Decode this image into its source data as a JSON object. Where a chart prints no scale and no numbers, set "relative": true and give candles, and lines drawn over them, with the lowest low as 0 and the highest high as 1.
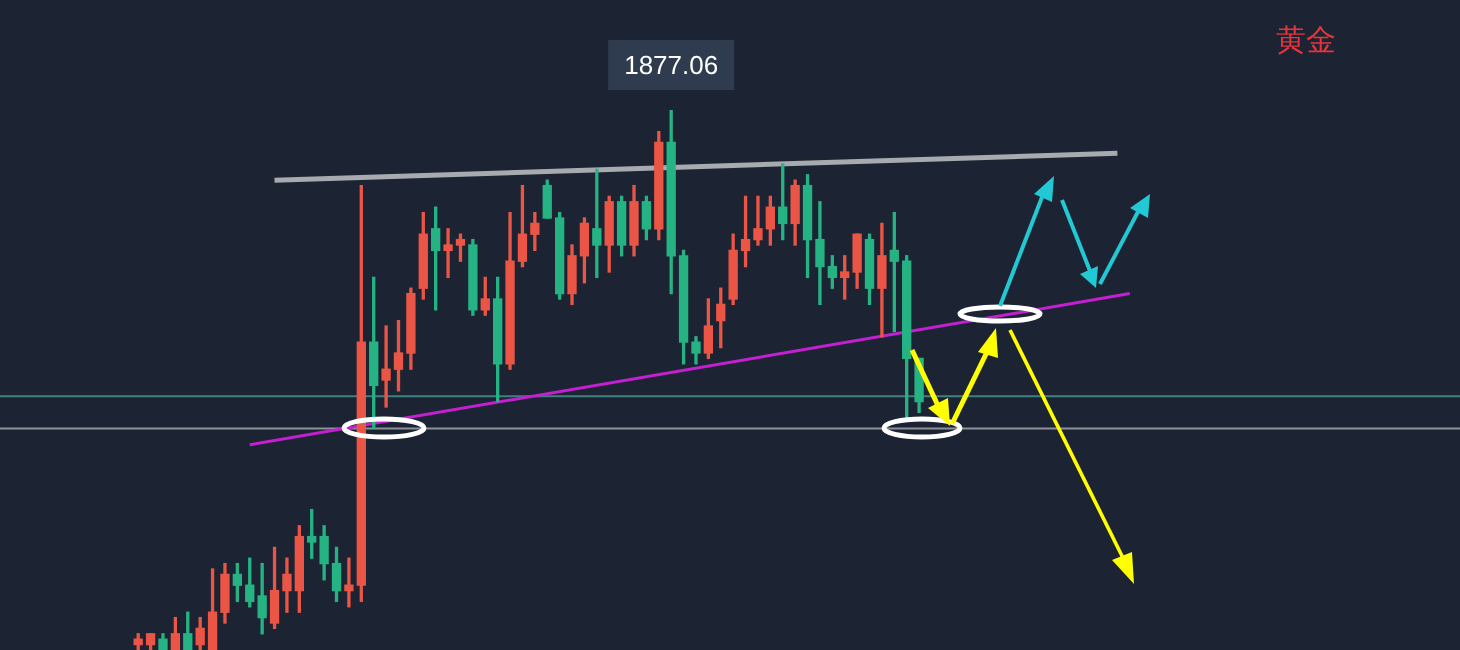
{
  "chart_data": {
    "type": "candlestick",
    "title": "黄金",
    "relative": true,
    "legend": false,
    "tick_labels": false,
    "categories": [
      null,
      null,
      null,
      null,
      null,
      null,
      null,
      null,
      null,
      null,
      null,
      null,
      null,
      null,
      null,
      null,
      null,
      null,
      null,
      null,
      null,
      null,
      null,
      null,
      null,
      null,
      null,
      null,
      null,
      null,
      null,
      null,
      null,
      null,
      null,
      null,
      null,
      null,
      null,
      null,
      null,
      null,
      null,
      null,
      null,
      null,
      null,
      null,
      null,
      null,
      null,
      null,
      null,
      null,
      null,
      null,
      null,
      null,
      null,
      null,
      null,
      null,
      null,
      null,
      null,
      null,
      null,
      null,
      null,
      null,
      null,
      null,
      null,
      null,
      null,
      null,
      null,
      null,
      null,
      null,
      null
    ],
    "series": [
      {
        "type": "line",
        "color": "#a7abb0",
        "values": [
          null,
          null,
          null,
          null,
          null,
          null,
          null,
          null,
          null,
          null,
          null,
          0.87,
          null,
          null,
          null,
          null,
          null,
          null,
          null,
          null,
          null,
          null,
          null,
          null,
          null,
          null,
          null,
          null,
          null,
          null,
          null,
          null,
          null,
          null,
          null,
          null,
          null,
          null,
          null,
          null,
          null,
          null,
          null,
          null,
          null,
          null,
          null,
          null,
          null,
          null,
          null,
          null,
          null,
          null,
          null,
          null,
          null,
          null,
          null,
          null,
          null,
          null,
          null,
          null,
          null,
          null,
          null,
          null,
          null,
          null,
          null,
          null,
          null,
          null,
          null,
          null,
          null,
          null,
          null,
          0.92,
          null
        ]
      },
      {
        "type": "line",
        "color": "#c51fd2",
        "values": [
          null,
          null,
          null,
          null,
          null,
          null,
          null,
          null,
          null,
          0.38,
          null,
          null,
          null,
          null,
          null,
          null,
          null,
          null,
          null,
          null,
          null,
          null,
          null,
          null,
          null,
          null,
          null,
          null,
          null,
          null,
          null,
          null,
          null,
          null,
          null,
          null,
          null,
          null,
          null,
          null,
          null,
          null,
          null,
          null,
          null,
          null,
          null,
          null,
          null,
          null,
          null,
          null,
          null,
          null,
          null,
          null,
          null,
          null,
          null,
          null,
          null,
          null,
          null,
          null,
          null,
          null,
          null,
          null,
          null,
          null,
          null,
          null,
          null,
          null,
          null,
          null,
          null,
          null,
          null,
          null,
          0.66
        ]
      }
    ],
    "ohlc": [
      [
        0.01,
        0.03,
        0,
        0.02
      ],
      [
        0.01,
        0.03,
        0,
        0.03
      ],
      [
        0.02,
        0.03,
        0,
        0
      ],
      [
        0,
        0.06,
        0,
        0.03
      ],
      [
        0.03,
        0.07,
        0,
        0
      ],
      [
        0.01,
        0.06,
        0,
        0.04
      ],
      [
        0,
        0.15,
        0,
        0.07
      ],
      [
        0.07,
        0.16,
        0.05,
        0.14
      ],
      [
        0.14,
        0.16,
        0.09,
        0.12
      ],
      [
        0.12,
        0.17,
        0.08,
        0.09
      ],
      [
        0.1,
        0.16,
        0.03,
        0.06
      ],
      [
        0.05,
        0.19,
        0.04,
        0.11
      ],
      [
        0.11,
        0.17,
        0.07,
        0.14
      ],
      [
        0.11,
        0.23,
        0.07,
        0.21
      ],
      [
        0.21,
        0.26,
        0.17,
        0.2
      ],
      [
        0.21,
        0.23,
        0.13,
        0.16
      ],
      [
        0.16,
        0.19,
        0.09,
        0.11
      ],
      [
        0.11,
        0.17,
        0.08,
        0.12
      ],
      [
        0.12,
        0.86,
        0.09,
        0.57
      ],
      [
        0.57,
        0.69,
        0.41,
        0.49
      ],
      [
        0.5,
        0.6,
        0.45,
        0.52
      ],
      [
        0.52,
        0.61,
        0.48,
        0.55
      ],
      [
        0.55,
        0.67,
        0.52,
        0.66
      ],
      [
        0.67,
        0.81,
        0.65,
        0.77
      ],
      [
        0.78,
        0.82,
        0.63,
        0.74
      ],
      [
        0.74,
        0.78,
        0.69,
        0.75
      ],
      [
        0.75,
        0.77,
        0.72,
        0.76
      ],
      [
        0.75,
        0.76,
        0.62,
        0.63
      ],
      [
        0.63,
        0.69,
        0.62,
        0.65
      ],
      [
        0.65,
        0.69,
        0.46,
        0.53
      ],
      [
        0.53,
        0.81,
        0.52,
        0.72
      ],
      [
        0.72,
        0.86,
        0.71,
        0.77
      ],
      [
        0.77,
        0.81,
        0.74,
        0.79
      ],
      [
        0.86,
        0.87,
        0.8,
        0.8
      ],
      [
        0.8,
        0.81,
        0.65,
        0.66
      ],
      [
        0.66,
        0.75,
        0.64,
        0.73
      ],
      [
        0.73,
        0.8,
        0.68,
        0.79
      ],
      [
        0.78,
        0.89,
        0.69,
        0.75
      ],
      [
        0.75,
        0.84,
        0.7,
        0.83
      ],
      [
        0.83,
        0.84,
        0.73,
        0.75
      ],
      [
        0.75,
        0.86,
        0.73,
        0.83
      ],
      [
        0.83,
        0.84,
        0.76,
        0.78
      ],
      [
        0.78,
        0.96,
        0.76,
        0.94
      ],
      [
        0.94,
        1,
        0.66,
        0.73
      ],
      [
        0.73,
        0.74,
        0.53,
        0.57
      ],
      [
        0.57,
        0.58,
        0.53,
        0.55
      ],
      [
        0.55,
        0.65,
        0.54,
        0.6
      ],
      [
        0.61,
        0.67,
        0.56,
        0.64
      ],
      [
        0.65,
        0.77,
        0.64,
        0.74
      ],
      [
        0.74,
        0.84,
        0.71,
        0.76
      ],
      [
        0.76,
        0.84,
        0.75,
        0.78
      ],
      [
        0.78,
        0.84,
        0.75,
        0.82
      ],
      [
        0.82,
        0.9,
        0.76,
        0.79
      ],
      [
        0.79,
        0.87,
        0.75,
        0.86
      ],
      [
        0.86,
        0.88,
        0.69,
        0.76
      ],
      [
        0.76,
        0.83,
        0.64,
        0.71
      ],
      [
        0.71,
        0.73,
        0.67,
        0.69
      ],
      [
        0.69,
        0.73,
        0.65,
        0.7
      ],
      [
        0.7,
        0.77,
        0.67,
        0.77
      ],
      [
        0.76,
        0.77,
        0.64,
        0.67
      ],
      [
        0.67,
        0.79,
        0.58,
        0.73
      ],
      [
        0.74,
        0.81,
        0.59,
        0.72
      ],
      [
        0.72,
        0.73,
        0.43,
        0.54
      ],
      [
        0.54,
        0.54,
        0.44,
        0.46
      ],
      null,
      null,
      null,
      null,
      null,
      null,
      null,
      null,
      null,
      null,
      null,
      null,
      null,
      null,
      null,
      null,
      null
    ],
    "colors": [
      "#eb5545",
      "#eb5545",
      "#26b383",
      "#eb5545",
      "#26b383",
      "#eb5545",
      "#eb5545",
      "#eb5545",
      "#26b383",
      "#26b383",
      "#26b383",
      "#eb5545",
      "#eb5545",
      "#eb5545",
      "#26b383",
      "#26b383",
      "#26b383",
      "#eb5545",
      "#eb5545",
      "#26b383",
      "#eb5545",
      "#eb5545",
      "#eb5545",
      "#eb5545",
      "#26b383",
      "#eb5545",
      "#eb5545",
      "#26b383",
      "#eb5545",
      "#26b383",
      "#eb5545",
      "#eb5545",
      "#eb5545",
      "#26b383",
      "#26b383",
      "#eb5545",
      "#eb5545",
      "#26b383",
      "#eb5545",
      "#26b383",
      "#eb5545",
      "#26b383",
      "#eb5545",
      "#26b383",
      "#26b383",
      "#26b383",
      "#eb5545",
      "#eb5545",
      "#eb5545",
      "#eb5545",
      "#eb5545",
      "#eb5545",
      "#26b383",
      "#eb5545",
      "#26b383",
      "#26b383",
      "#26b383",
      "#eb5545",
      "#eb5545",
      "#26b383",
      "#eb5545",
      "#26b383",
      "#26b383",
      "#26b383",
      null,
      null,
      null,
      null,
      null,
      null,
      null,
      null,
      null,
      null,
      null,
      null,
      null,
      null,
      null,
      null,
      null
    ],
    "ref_lines": [
      {
        "axis": "y",
        "value": 0.47,
        "color": "#3f7f80"
      },
      {
        "axis": "y",
        "value": 0.41,
        "color": "#8a9199"
      }
    ],
    "annotations": [
      {
        "text": "1877.06",
        "y": 1
      }
    ]
  }
}
